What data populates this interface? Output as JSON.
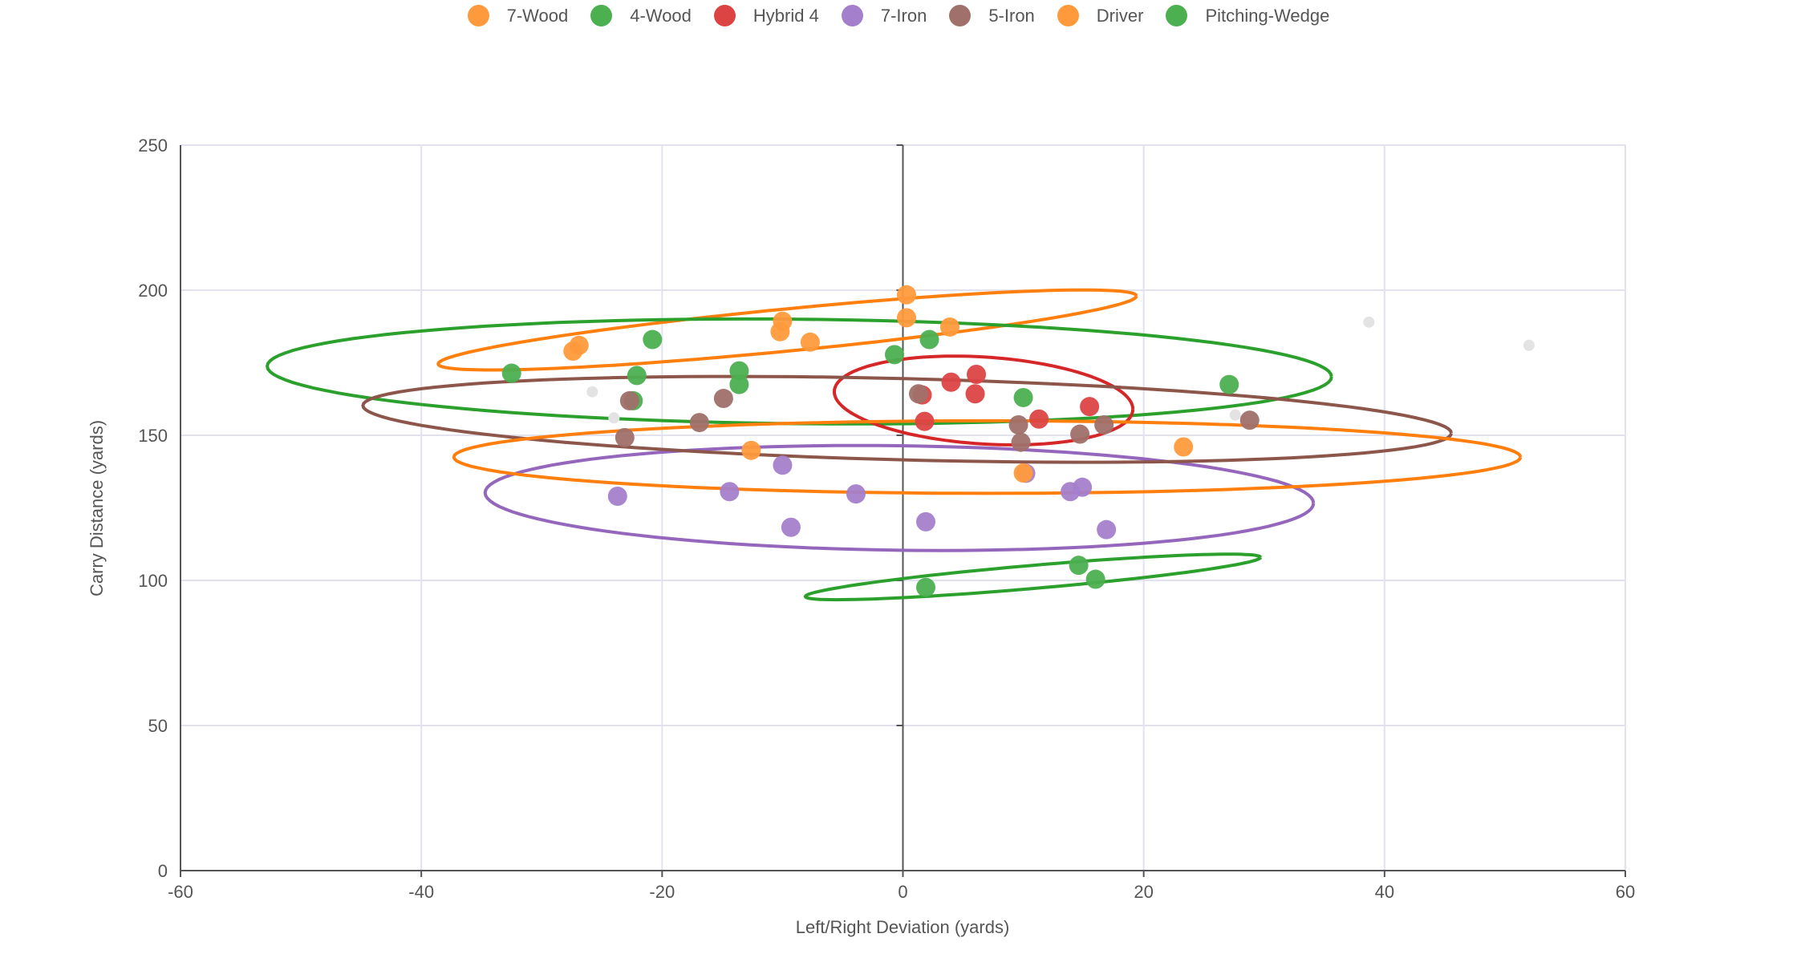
{
  "chart_data": {
    "type": "scatter",
    "xlabel": "Left/Right Deviation (yards)",
    "ylabel": "Carry Distance (yards)",
    "xlim": [
      -60,
      60
    ],
    "ylim": [
      0,
      250
    ],
    "xticks": [
      -60,
      -40,
      -20,
      0,
      20,
      40,
      60
    ],
    "yticks": [
      0,
      50,
      100,
      150,
      200,
      250
    ],
    "grid": true,
    "legend_position": "top",
    "series": [
      {
        "name": "7-Wood",
        "color": "#ff7f0e",
        "point_color": "#ff9a3c",
        "points": [
          [
            0.3,
            198.4
          ],
          [
            0.3,
            190.5
          ],
          [
            -10,
            189.3
          ],
          [
            -10.2,
            185.7
          ],
          [
            -7.7,
            182.1
          ],
          [
            3.9,
            187.3
          ],
          [
            -26.9,
            181
          ],
          [
            -27.4,
            179
          ]
        ],
        "ellipse": {
          "center": [
            -9.6,
            186.3
          ],
          "half_width": 29,
          "tilt_rise": 11.7,
          "half_height": 7.3
        }
      },
      {
        "name": "4-Wood",
        "color": "#2ca02c",
        "point_color": "#4caf50",
        "points": [
          [
            -32.5,
            171.4
          ],
          [
            -20.8,
            183
          ],
          [
            -22.1,
            170.6
          ],
          [
            -22.4,
            161.9
          ],
          [
            -13.6,
            172.2
          ],
          [
            -13.6,
            167.5
          ],
          [
            -0.7,
            177.8
          ],
          [
            2.2,
            183
          ],
          [
            10,
            163
          ],
          [
            27.1,
            167.5
          ]
        ],
        "ellipse": {
          "center": [
            -8.6,
            172
          ],
          "half_width": 44.2,
          "tilt_rise": -1.8,
          "half_height": 18
        }
      },
      {
        "name": "Hybrid 4",
        "color": "#d62728",
        "point_color": "#dc4444",
        "points": [
          [
            1.6,
            163.9
          ],
          [
            4,
            168.3
          ],
          [
            6.1,
            171
          ],
          [
            6,
            164.3
          ],
          [
            1.8,
            154.8
          ],
          [
            11.3,
            155.6
          ],
          [
            15.5,
            159.9
          ]
        ],
        "ellipse": {
          "center": [
            6.7,
            162
          ],
          "half_width": 12.4,
          "tilt_rise": -3,
          "half_height": 15
        }
      },
      {
        "name": "7-Iron",
        "color": "#9467bd",
        "point_color": "#a47fcb",
        "points": [
          [
            -23.7,
            129
          ],
          [
            -14.4,
            130.6
          ],
          [
            -10,
            139.7
          ],
          [
            -9.3,
            118.3
          ],
          [
            -3.9,
            129.8
          ],
          [
            1.9,
            120.2
          ],
          [
            10.2,
            136.9
          ],
          [
            13.9,
            130.6
          ],
          [
            14.9,
            132.1
          ],
          [
            16.9,
            117.5
          ]
        ],
        "ellipse": {
          "center": [
            -0.3,
            128.4
          ],
          "half_width": 34.4,
          "tilt_rise": -1.8,
          "half_height": 18
        }
      },
      {
        "name": "5-Iron",
        "color": "#8c564b",
        "point_color": "#a0706a",
        "points": [
          [
            -22.7,
            161.9
          ],
          [
            -23.1,
            149.2
          ],
          [
            -16.9,
            154.4
          ],
          [
            -14.9,
            162.7
          ],
          [
            1.3,
            164.3
          ],
          [
            9.6,
            153.6
          ],
          [
            9.8,
            147.6
          ],
          [
            14.7,
            150.4
          ],
          [
            16.7,
            153.6
          ],
          [
            28.8,
            155.2
          ]
        ],
        "ellipse": {
          "center": [
            0.35,
            155.5
          ],
          "half_width": 45.2,
          "tilt_rise": -4.75,
          "half_height": 14
        }
      },
      {
        "name": "Driver",
        "color": "#ff7f0e",
        "point_color": "#ff9a3c",
        "points": [
          [
            -12.6,
            144.8
          ],
          [
            10,
            137
          ],
          [
            23.3,
            146
          ]
        ],
        "ellipse": {
          "center": [
            7,
            142.5
          ],
          "half_width": 44.3,
          "tilt_rise": 0,
          "half_height": 12.5
        }
      },
      {
        "name": "Pitching-Wedge",
        "color": "#2ca02c",
        "point_color": "#4caf50",
        "points": [
          [
            14.6,
            105.2
          ],
          [
            16,
            100.4
          ],
          [
            1.9,
            97.6
          ]
        ],
        "ellipse": {
          "center": [
            10.8,
            101.2
          ],
          "half_width": 18.9,
          "tilt_rise": 6.75,
          "half_height": 4
        }
      }
    ],
    "unlabeled_points": {
      "color": "#e3e3e3",
      "points": [
        [
          -25.8,
          165
        ],
        [
          38.7,
          189
        ],
        [
          52,
          181
        ],
        [
          27.6,
          157
        ],
        [
          -24,
          156
        ]
      ]
    }
  }
}
